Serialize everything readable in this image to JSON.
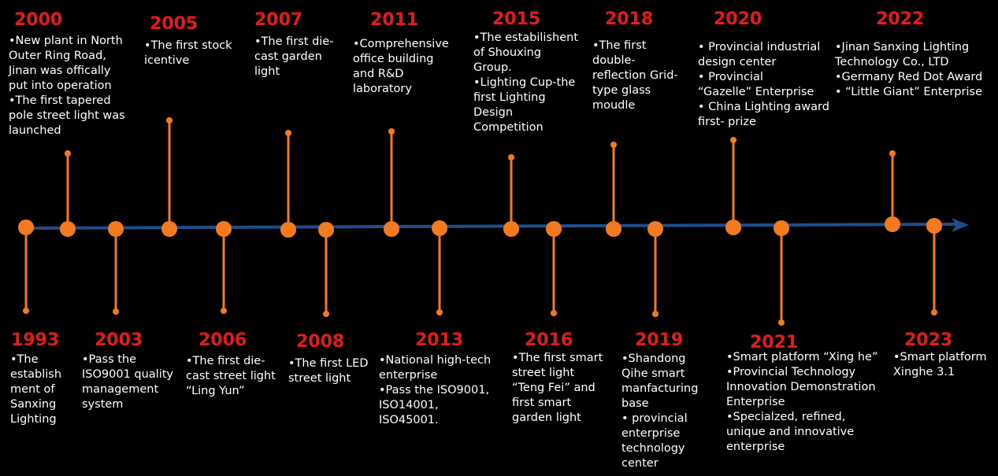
{
  "colors": {
    "background": "#000000",
    "accent": "#f47a20",
    "axis": "#1f4e8c",
    "year": "#e31b1b",
    "text": "#ffffff"
  },
  "events": [
    {
      "year": "2000",
      "lines": [
        "•New plant in North",
        "Outer Ring Road,",
        "Jinan was offically",
        "put into operation",
        "•The first tapered",
        "pole street light was",
        "launched"
      ]
    },
    {
      "year": "2005",
      "lines": [
        "•The first stock",
        "icentive"
      ]
    },
    {
      "year": "2007",
      "lines": [
        "•The first die-",
        "cast garden",
        "light"
      ]
    },
    {
      "year": "2011",
      "lines": [
        "•Comprehensive",
        "office building",
        "and R&D",
        "laboratory"
      ]
    },
    {
      "year": "2015",
      "lines": [
        "•The estabilishent",
        "of Shouxing",
        "Group.",
        "•Lighting Cup-the",
        "first Lighting",
        "Design",
        "Competition"
      ]
    },
    {
      "year": "2018",
      "lines": [
        "•The first",
        "double-",
        "reflection Grid-",
        "type glass",
        "moudle"
      ]
    },
    {
      "year": "2020",
      "lines": [
        "• Provincial industrial",
        "design center",
        "• Provincial",
        "“Gazelle” Enterprise",
        "• China Lighting award",
        "first- prize"
      ]
    },
    {
      "year": "2022",
      "lines": [
        "•Jinan Sanxing Lighting",
        "Technology Co., LTD",
        "•Germany Red Dot Award",
        "• “Little Giant” Enterprise"
      ]
    },
    {
      "year": "1993",
      "lines": [
        "•The",
        "establish",
        "ment of",
        "Sanxing",
        "Lighting"
      ]
    },
    {
      "year": "2003",
      "lines": [
        "•Pass the",
        "ISO9001 quality",
        "management",
        "system"
      ]
    },
    {
      "year": "2006",
      "lines": [
        "•The first die-",
        "cast street light",
        "“Ling Yun”"
      ]
    },
    {
      "year": "2008",
      "lines": [
        "•The first LED",
        "street light"
      ]
    },
    {
      "year": "2013",
      "lines": [
        "•National high-tech",
        "enterprise",
        "•Pass the ISO9001,",
        "ISO14001,",
        "ISO45001."
      ]
    },
    {
      "year": "2016",
      "lines": [
        "•The first smart",
        "street light",
        "“Teng Fei” and",
        "first smart",
        "garden light"
      ]
    },
    {
      "year": "2019",
      "lines": [
        "•Shandong",
        "Qihe smart",
        "manfacturing",
        "base",
        "• provincial",
        "enterprise",
        "technology",
        "center"
      ]
    },
    {
      "year": "2021",
      "lines": [
        "•Smart platform “Xing he”",
        "•Provincial Technology",
        "Innovation Demonstration",
        "Enterprise",
        "•Specialzed, refined,",
        "unique and innovative",
        "enterprise"
      ]
    },
    {
      "year": "2023",
      "lines": [
        "•Smart platform",
        "Xinghe 3.1"
      ]
    }
  ]
}
